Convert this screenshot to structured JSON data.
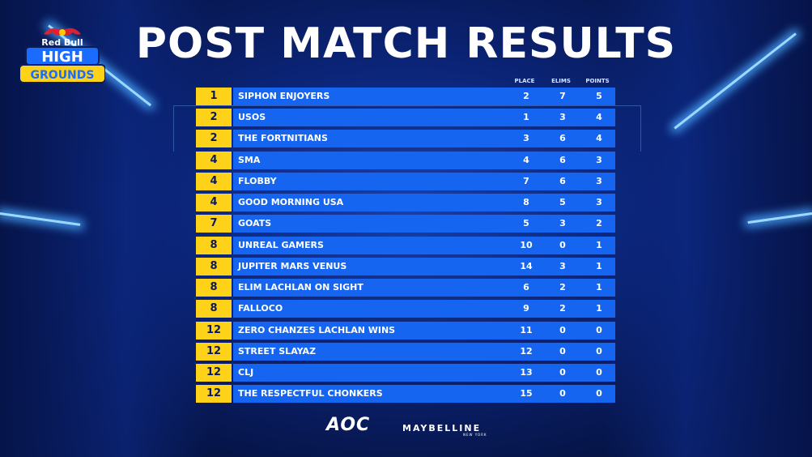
{
  "logo": {
    "line1": "Red Bull",
    "line2": "HIGH",
    "line3": "GROUNDS"
  },
  "title": "POST MATCH RESULTS",
  "columns": {
    "place": "PLACE",
    "elims": "ELIMS",
    "points": "POINTS"
  },
  "rows": [
    {
      "rank": "1",
      "team": "SIPHON ENJOYERS",
      "place": "2",
      "elims": "7",
      "points": "5"
    },
    {
      "rank": "2",
      "team": "USOS",
      "place": "1",
      "elims": "3",
      "points": "4"
    },
    {
      "rank": "2",
      "team": "THE FORTNITIANS",
      "place": "3",
      "elims": "6",
      "points": "4"
    },
    {
      "rank": "4",
      "team": "SMA",
      "place": "4",
      "elims": "6",
      "points": "3"
    },
    {
      "rank": "4",
      "team": "FLOBBY",
      "place": "7",
      "elims": "6",
      "points": "3"
    },
    {
      "rank": "4",
      "team": "GOOD MORNING USA",
      "place": "8",
      "elims": "5",
      "points": "3"
    },
    {
      "rank": "7",
      "team": "GOATS",
      "place": "5",
      "elims": "3",
      "points": "2"
    },
    {
      "rank": "8",
      "team": "UNREAL GAMERS",
      "place": "10",
      "elims": "0",
      "points": "1"
    },
    {
      "rank": "8",
      "team": "JUPITER MARS VENUS",
      "place": "14",
      "elims": "3",
      "points": "1"
    },
    {
      "rank": "8",
      "team": "ELIM LACHLAN ON SIGHT",
      "place": "6",
      "elims": "2",
      "points": "1"
    },
    {
      "rank": "8",
      "team": "FALLOCO",
      "place": "9",
      "elims": "2",
      "points": "1"
    },
    {
      "rank": "12",
      "team": "ZERO CHANZES LACHLAN WINS",
      "place": "11",
      "elims": "0",
      "points": "0"
    },
    {
      "rank": "12",
      "team": "STREET SLAYAZ",
      "place": "12",
      "elims": "0",
      "points": "0"
    },
    {
      "rank": "12",
      "team": "CLJ",
      "place": "13",
      "elims": "0",
      "points": "0"
    },
    {
      "rank": "12",
      "team": "THE RESPECTFUL CHONKERS",
      "place": "15",
      "elims": "0",
      "points": "0"
    }
  ],
  "sponsors": {
    "aoc": "AOC",
    "maybelline": "MAYBELLINE",
    "maybelline_sub": "NEW YORK"
  },
  "colors": {
    "rank_bg": "#ffd21a",
    "bar_bg": "#1665f0",
    "background": "#0b2477"
  }
}
